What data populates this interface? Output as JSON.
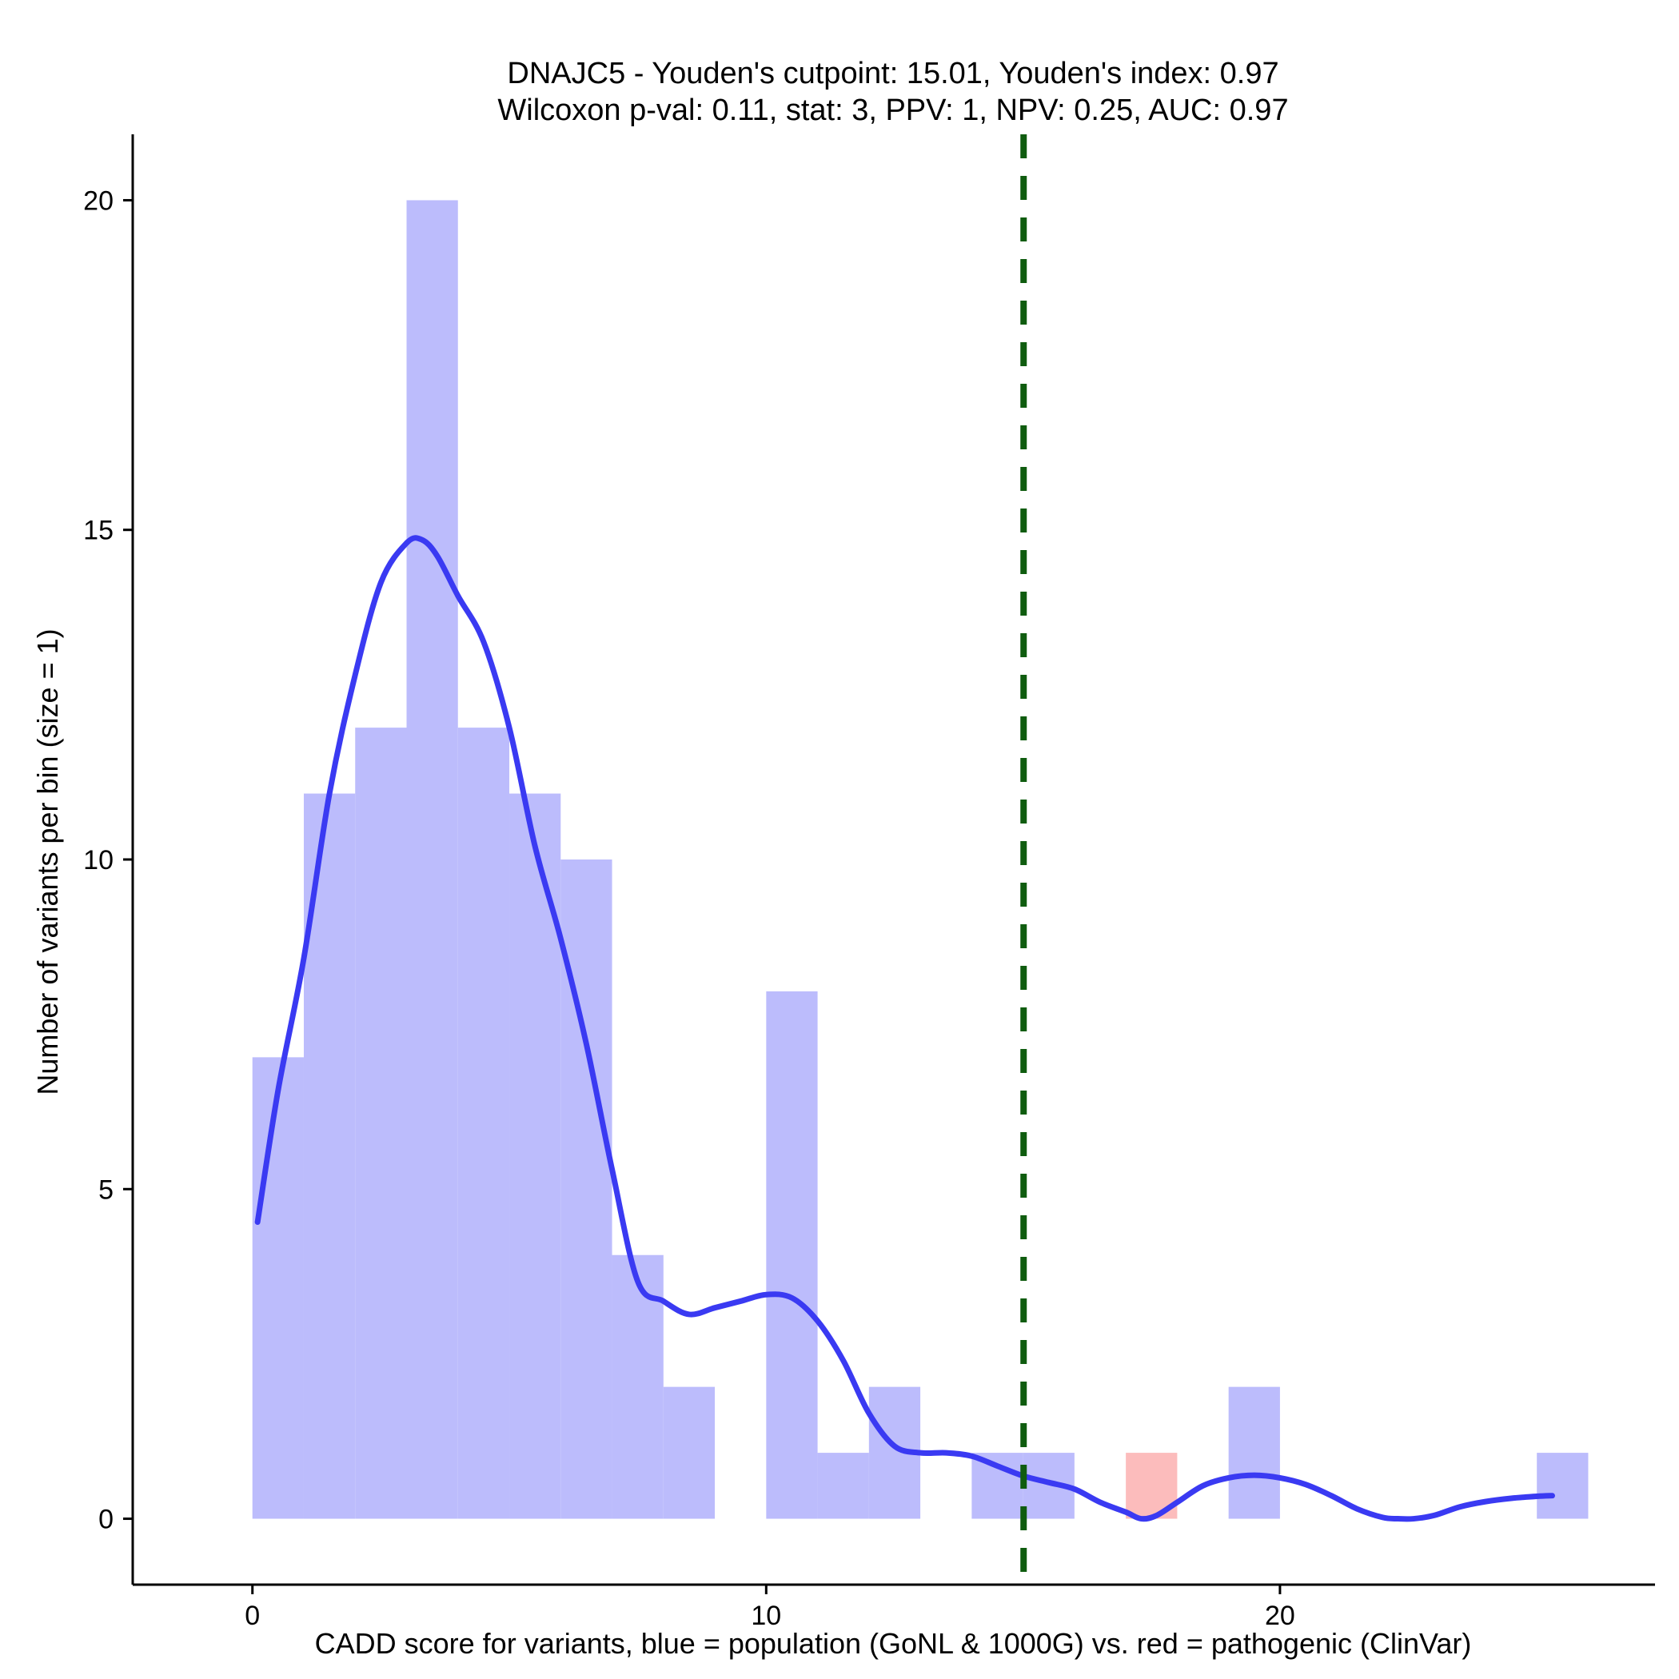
{
  "chart_data": {
    "type": "bar",
    "title": "DNAJC5 - Youden's cutpoint: 15.01, Youden's index: 0.97",
    "subtitle": "Wilcoxon p-val: 0.11, stat: 3, PPV: 1, NPV: 0.25, AUC: 0.97",
    "xlabel": "CADD score for variants, blue = population (GoNL & 1000G) vs. red = pathogenic (ClinVar)",
    "ylabel": "Number of variants per bin (size = 1)",
    "xlim": [
      -2.33,
      27.3
    ],
    "ylim": [
      -1,
      21
    ],
    "x_ticks": [
      {
        "value": 0,
        "label": "0"
      },
      {
        "value": 10,
        "label": "10"
      },
      {
        "value": 20,
        "label": "20"
      }
    ],
    "y_ticks": [
      {
        "value": 0,
        "label": "0"
      },
      {
        "value": 5,
        "label": "5"
      },
      {
        "value": 10,
        "label": "10"
      },
      {
        "value": 15,
        "label": "15"
      },
      {
        "value": 20,
        "label": "20"
      }
    ],
    "bin_size": 1,
    "series": [
      {
        "name": "population (GoNL & 1000G)",
        "color": "#bcbcfc",
        "bins": [
          {
            "start": 0,
            "count": 7
          },
          {
            "start": 1,
            "count": 11
          },
          {
            "start": 2,
            "count": 12
          },
          {
            "start": 3,
            "count": 20
          },
          {
            "start": 4,
            "count": 12
          },
          {
            "start": 5,
            "count": 11
          },
          {
            "start": 6,
            "count": 10
          },
          {
            "start": 7,
            "count": 4
          },
          {
            "start": 8,
            "count": 2
          },
          {
            "start": 10,
            "count": 8
          },
          {
            "start": 11,
            "count": 1
          },
          {
            "start": 12,
            "count": 2
          },
          {
            "start": 14,
            "count": 1
          },
          {
            "start": 15,
            "count": 1
          },
          {
            "start": 19,
            "count": 2
          },
          {
            "start": 25,
            "count": 1
          }
        ]
      },
      {
        "name": "pathogenic (ClinVar)",
        "color": "#fcbcbc",
        "bins": [
          {
            "start": 17,
            "count": 1
          }
        ]
      }
    ],
    "density_line": {
      "name": "population density",
      "color": "#3a3af2",
      "x": [
        0.1,
        0.5,
        1.0,
        1.5,
        2.0,
        2.5,
        3.0,
        3.3,
        3.6,
        4.0,
        4.5,
        5.0,
        5.5,
        6.0,
        6.5,
        7.0,
        7.5,
        8.0,
        8.5,
        9.0,
        9.5,
        10.0,
        10.5,
        11.0,
        11.5,
        12.0,
        12.5,
        13.0,
        13.5,
        14.0,
        14.5,
        15.0,
        15.5,
        16.0,
        16.5,
        17.0,
        17.3,
        17.6,
        18.0,
        18.5,
        19.0,
        19.5,
        20.0,
        20.5,
        21.0,
        21.5,
        22.0,
        22.3,
        22.6,
        23.0,
        23.5,
        24.0,
        24.5,
        25.0,
        25.3
      ],
      "y": [
        4.5,
        6.5,
        8.5,
        11.0,
        12.8,
        14.2,
        14.8,
        14.85,
        14.6,
        14.0,
        13.3,
        12.0,
        10.2,
        8.8,
        7.2,
        5.3,
        3.6,
        3.3,
        3.1,
        3.2,
        3.3,
        3.4,
        3.35,
        3.0,
        2.4,
        1.6,
        1.1,
        1.0,
        1.0,
        0.95,
        0.8,
        0.65,
        0.55,
        0.45,
        0.25,
        0.1,
        0.0,
        0.05,
        0.25,
        0.5,
        0.62,
        0.66,
        0.62,
        0.52,
        0.35,
        0.15,
        0.02,
        0.0,
        0.0,
        0.05,
        0.18,
        0.26,
        0.31,
        0.34,
        0.35
      ]
    },
    "cutpoint_line": {
      "value": 15.01,
      "color": "#0f5c0f",
      "style": "dashed"
    },
    "grid": false,
    "legend": "none"
  }
}
